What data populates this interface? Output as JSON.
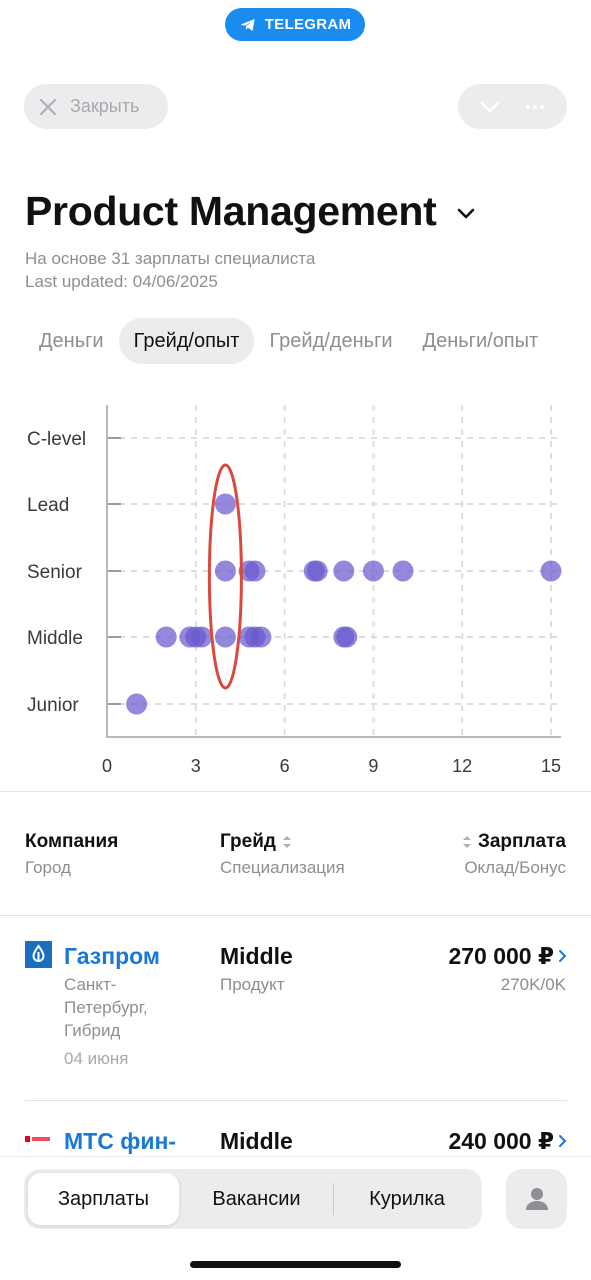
{
  "telegram_badge": "TELEGRAM",
  "header": {
    "close_label": "Закрыть"
  },
  "page": {
    "title": "Product Management",
    "subtitle_count": "На основе 31 зарплаты специалиста",
    "subtitle_updated": "Last updated: 04/06/2025"
  },
  "tabs": [
    {
      "label": "Деньги",
      "active": false
    },
    {
      "label": "Грейд/опыт",
      "active": true
    },
    {
      "label": "Грейд/деньги",
      "active": false
    },
    {
      "label": "Деньги/опыт",
      "active": false
    }
  ],
  "chart_data": {
    "type": "scatter",
    "x_ticks": [
      "0",
      "3",
      "6",
      "9",
      "12",
      "15"
    ],
    "xlim": [
      0,
      15
    ],
    "categories": [
      "Junior",
      "Middle",
      "Senior",
      "Lead",
      "C-level"
    ],
    "grid": true,
    "point_color": "#6a5acd",
    "points": [
      {
        "x": 1,
        "y": "Junior"
      },
      {
        "x": 2,
        "y": "Middle"
      },
      {
        "x": 2.8,
        "y": "Middle"
      },
      {
        "x": 3,
        "y": "Middle"
      },
      {
        "x": 3.2,
        "y": "Middle"
      },
      {
        "x": 4,
        "y": "Middle"
      },
      {
        "x": 4.8,
        "y": "Middle"
      },
      {
        "x": 5,
        "y": "Middle"
      },
      {
        "x": 5.2,
        "y": "Middle"
      },
      {
        "x": 8,
        "y": "Middle"
      },
      {
        "x": 8.1,
        "y": "Middle"
      },
      {
        "x": 4,
        "y": "Senior"
      },
      {
        "x": 4.8,
        "y": "Senior"
      },
      {
        "x": 5,
        "y": "Senior"
      },
      {
        "x": 7,
        "y": "Senior"
      },
      {
        "x": 7.1,
        "y": "Senior"
      },
      {
        "x": 8,
        "y": "Senior"
      },
      {
        "x": 9,
        "y": "Senior"
      },
      {
        "x": 10,
        "y": "Senior"
      },
      {
        "x": 15,
        "y": "Senior"
      },
      {
        "x": 4,
        "y": "Lead"
      }
    ],
    "highlight": {
      "shape": "ellipse",
      "x": 4,
      "color": "#d94a3d",
      "from": "Middle",
      "to": "Lead"
    }
  },
  "table": {
    "col_company": "Компания",
    "col_company_sub": "Город",
    "col_grade": "Грейд",
    "col_grade_sub": "Специализация",
    "col_salary": "Зарплата",
    "col_salary_sub": "Оклад/Бонус",
    "rows": [
      {
        "company": "Газпром",
        "city": "Санкт-Петербург, Гибрид",
        "date": "04 июня",
        "grade": "Middle",
        "spec": "Продукт",
        "salary": "270 000 ₽",
        "split": "270K/0K"
      },
      {
        "company": "МТС фин-",
        "grade": "Middle",
        "salary": "240 000 ₽"
      }
    ]
  },
  "bottom_nav": {
    "items": [
      "Зарплаты",
      "Вакансии",
      "Курилка"
    ],
    "active_index": 0
  },
  "colors": {
    "accent": "#1a8cf0",
    "link": "#1a78d6",
    "highlight": "#d94a3d",
    "point": "#6a5acd"
  }
}
